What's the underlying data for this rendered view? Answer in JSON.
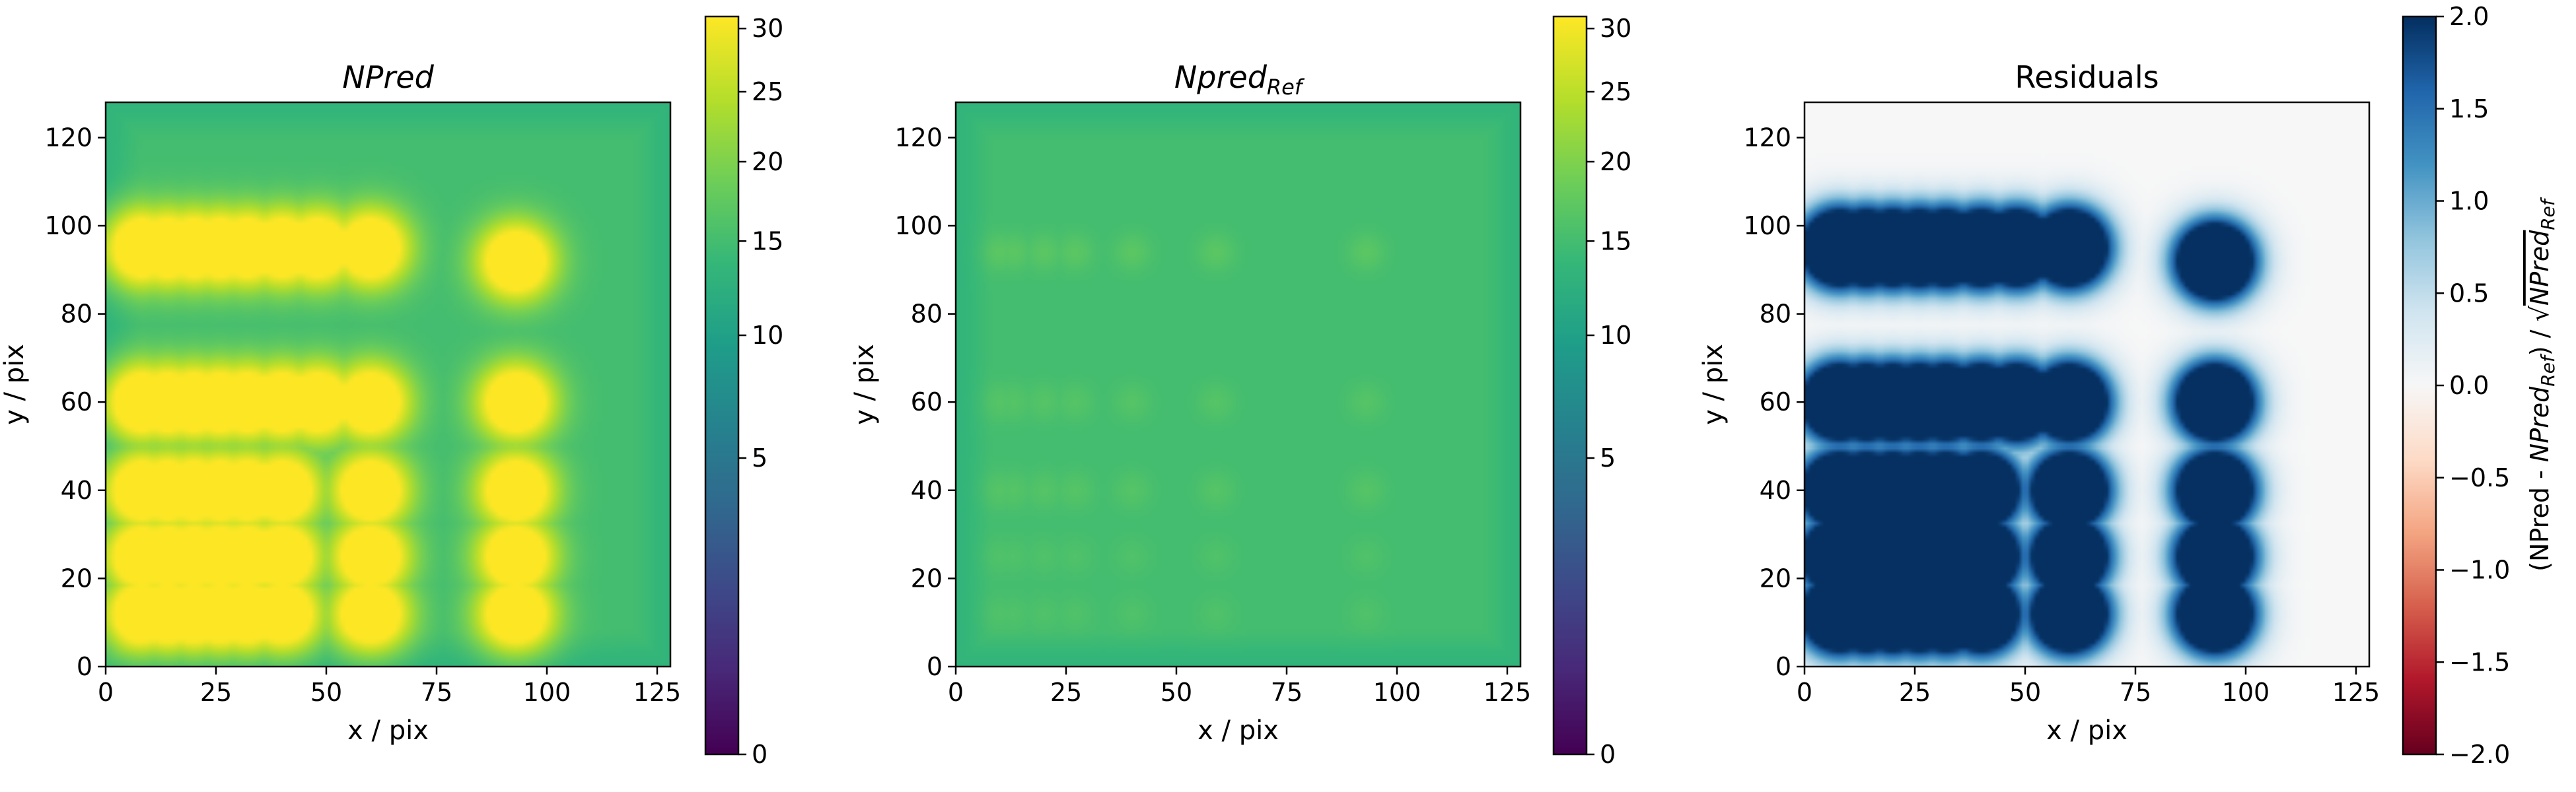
{
  "colors": {
    "viridis": [
      "#440154",
      "#482878",
      "#3e4989",
      "#31688e",
      "#26828e",
      "#1f9e89",
      "#35b779",
      "#6ece58",
      "#b5de2b",
      "#fde725"
    ],
    "rdbu": [
      "#67001f",
      "#b2182b",
      "#d6604d",
      "#f4a582",
      "#fddbc7",
      "#f7f7f7",
      "#d1e5f0",
      "#92c5de",
      "#4393c3",
      "#2166ac",
      "#053061"
    ],
    "axes": "#000000",
    "background": "#ffffff"
  },
  "chart_data": [
    {
      "id": "npred",
      "type": "heatmap",
      "title": "NPred",
      "title_sub": "",
      "xlabel": "x / pix",
      "ylabel": "y / pix",
      "xlim": [
        0,
        128
      ],
      "ylim": [
        0,
        128
      ],
      "xticks": [
        0,
        25,
        50,
        75,
        100,
        125
      ],
      "yticks": [
        0,
        20,
        40,
        60,
        80,
        100,
        120
      ],
      "colormap": "viridis",
      "color_scale": "sqrt",
      "clim": [
        0,
        31
      ],
      "background_level": 15,
      "edge_level": 13,
      "cbar_ticks": [
        0,
        5,
        10,
        15,
        20,
        25,
        30
      ],
      "cbar_label": "",
      "sources": [
        {
          "y": 95,
          "xs": [
            8,
            14,
            20,
            26,
            32,
            40,
            48,
            60
          ],
          "level": 31
        },
        {
          "y": 92,
          "xs": [
            93
          ],
          "level": 31
        },
        {
          "y": 60,
          "xs": [
            8,
            14,
            20,
            26,
            32,
            40,
            48,
            60,
            93
          ],
          "level": 31
        },
        {
          "y": 40,
          "xs": [
            8,
            14,
            20,
            26,
            32,
            40,
            60,
            93
          ],
          "level": 31
        },
        {
          "y": 25,
          "xs": [
            8,
            14,
            20,
            26,
            32,
            40,
            60,
            93
          ],
          "level": 31
        },
        {
          "y": 12,
          "xs": [
            8,
            14,
            20,
            26,
            32,
            40,
            60,
            93
          ],
          "level": 31
        }
      ]
    },
    {
      "id": "npredref",
      "type": "heatmap",
      "title": "Npred",
      "title_sub": "Ref",
      "xlabel": "x / pix",
      "ylabel": "y / pix",
      "xlim": [
        0,
        128
      ],
      "ylim": [
        0,
        128
      ],
      "xticks": [
        0,
        25,
        50,
        75,
        100,
        125
      ],
      "yticks": [
        0,
        20,
        40,
        60,
        80,
        100,
        120
      ],
      "colormap": "viridis",
      "color_scale": "sqrt",
      "clim": [
        0,
        31
      ],
      "background_level": 15,
      "edge_level": 13,
      "cbar_ticks": [
        0,
        5,
        10,
        15,
        20,
        25,
        30
      ],
      "cbar_label": "",
      "sources": [
        {
          "y": 94,
          "xs": [
            10,
            13,
            20,
            27,
            40,
            59,
            93
          ],
          "level": 17
        },
        {
          "y": 60,
          "xs": [
            10,
            13,
            20,
            27,
            40,
            59,
            93
          ],
          "level": 16.5
        },
        {
          "y": 40,
          "xs": [
            10,
            13,
            20,
            27,
            40,
            59,
            93
          ],
          "level": 16.5
        },
        {
          "y": 25,
          "xs": [
            10,
            13,
            20,
            27,
            40,
            59,
            93
          ],
          "level": 16
        },
        {
          "y": 12,
          "xs": [
            10,
            13,
            20,
            27,
            40,
            59,
            93
          ],
          "level": 16
        }
      ]
    },
    {
      "id": "residuals",
      "type": "heatmap",
      "title": "Residuals",
      "title_sub": "",
      "xlabel": "x / pix",
      "ylabel": "y / pix",
      "xlim": [
        0,
        128
      ],
      "ylim": [
        0,
        128
      ],
      "xticks": [
        0,
        25,
        50,
        75,
        100,
        125
      ],
      "yticks": [
        0,
        20,
        40,
        60,
        80,
        100,
        120
      ],
      "colormap": "RdBu",
      "color_scale": "linear",
      "clim": [
        -2.0,
        2.0
      ],
      "background_level": 0.0,
      "edge_level": 0.0,
      "cbar_ticks": [
        -2.0,
        -1.5,
        -1.0,
        -0.5,
        0.0,
        0.5,
        1.0,
        1.5,
        2.0
      ],
      "cbar_ticklabels": [
        "−2.0",
        "−1.5",
        "−1.0",
        "−0.5",
        "0.0",
        "0.5",
        "1.0",
        "1.5",
        "2.0"
      ],
      "cbar_label": "(NPred - NPred_Ref) / √NPred_Ref",
      "sources": [
        {
          "y": 95,
          "xs": [
            8,
            14,
            20,
            26,
            32,
            40,
            48,
            60
          ],
          "level": 3
        },
        {
          "y": 92,
          "xs": [
            93
          ],
          "level": 3
        },
        {
          "y": 60,
          "xs": [
            8,
            14,
            20,
            26,
            32,
            40,
            48,
            60,
            93
          ],
          "level": 3
        },
        {
          "y": 40,
          "xs": [
            8,
            14,
            20,
            26,
            32,
            40,
            60,
            93
          ],
          "level": 3
        },
        {
          "y": 25,
          "xs": [
            8,
            14,
            20,
            26,
            32,
            40,
            60,
            93
          ],
          "level": 3
        },
        {
          "y": 12,
          "xs": [
            8,
            14,
            20,
            26,
            32,
            40,
            60,
            93
          ],
          "level": 3
        }
      ]
    }
  ]
}
